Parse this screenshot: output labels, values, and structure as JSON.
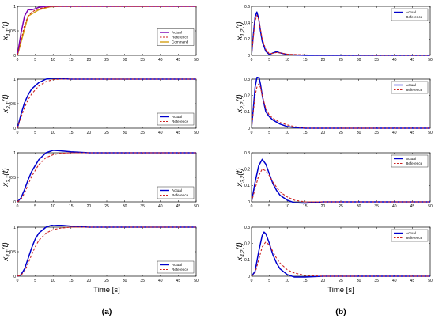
{
  "figure": {
    "panel_labels": [
      "(a)",
      "(b)"
    ],
    "xlabel": "Time [s]"
  },
  "chart_data": [
    {
      "type": "line",
      "panel": "(a)",
      "ylabel": "x_{1,1}(t)",
      "ylabel_main": "x",
      "ylabel_sub": "1,1",
      "ylabel_tail": "(t)",
      "xlabel": "",
      "xlim": [
        0,
        50
      ],
      "ylim": [
        0,
        1
      ],
      "xticks": [
        0,
        5,
        10,
        15,
        20,
        25,
        30,
        35,
        40,
        45,
        50
      ],
      "yticks": [
        0,
        0.5,
        1
      ],
      "legend_position": "right-middle",
      "series": [
        {
          "name": "Command",
          "color": "#d4a017",
          "dash": "solid",
          "x": [
            0,
            3,
            6,
            9,
            12,
            50
          ],
          "y": [
            0,
            0.8,
            0.93,
            0.99,
            1.0,
            1.0
          ]
        },
        {
          "name": "Actual",
          "color": "#7b00b4",
          "dash": "solid",
          "x": [
            0,
            1,
            2,
            3,
            4,
            5,
            6,
            8,
            10,
            50
          ],
          "y": [
            0,
            0.45,
            0.8,
            0.93,
            0.93,
            0.95,
            0.98,
            1.0,
            1.0,
            1.0
          ]
        },
        {
          "name": "Reference",
          "color": "#cc2222",
          "dash": "dashed",
          "x": [
            0,
            1,
            2,
            3,
            4,
            5,
            6,
            8,
            10,
            50
          ],
          "y": [
            0,
            0.3,
            0.62,
            0.8,
            0.88,
            0.92,
            0.95,
            0.98,
            1.0,
            1.0
          ]
        }
      ]
    },
    {
      "type": "line",
      "panel": "(a)",
      "ylabel": "x_{2,1}(t)",
      "ylabel_main": "x",
      "ylabel_sub": "2,1",
      "ylabel_tail": "(t)",
      "xlabel": "",
      "xlim": [
        0,
        50
      ],
      "ylim": [
        0,
        1
      ],
      "xticks": [
        0,
        5,
        10,
        15,
        20,
        25,
        30,
        35,
        40,
        45,
        50
      ],
      "yticks": [
        0,
        0.5,
        1
      ],
      "legend_position": "bottom-right",
      "series": [
        {
          "name": "Actual",
          "color": "#0000cc",
          "dash": "solid",
          "x": [
            0,
            1,
            2,
            3,
            4,
            6,
            8,
            10,
            12,
            15,
            50
          ],
          "y": [
            0,
            0.28,
            0.52,
            0.68,
            0.8,
            0.93,
            1.0,
            1.02,
            1.01,
            1.0,
            1.0
          ]
        },
        {
          "name": "Reference",
          "color": "#cc2222",
          "dash": "dashed",
          "x": [
            0,
            1,
            2,
            3,
            4,
            6,
            8,
            10,
            12,
            15,
            50
          ],
          "y": [
            0,
            0.22,
            0.42,
            0.58,
            0.7,
            0.86,
            0.95,
            0.99,
            1.0,
            1.0,
            1.0
          ]
        }
      ]
    },
    {
      "type": "line",
      "panel": "(a)",
      "ylabel": "x_{3,1}(t)",
      "ylabel_main": "x",
      "ylabel_sub": "3,1",
      "ylabel_tail": "(t)",
      "xlabel": "",
      "xlim": [
        0,
        50
      ],
      "ylim": [
        0,
        1
      ],
      "xticks": [
        0,
        5,
        10,
        15,
        20,
        25,
        30,
        35,
        40,
        45,
        50
      ],
      "yticks": [
        0,
        0.5,
        1
      ],
      "legend_position": "bottom-right",
      "series": [
        {
          "name": "Actual",
          "color": "#0000cc",
          "dash": "solid",
          "x": [
            0,
            1,
            2,
            3,
            4,
            6,
            8,
            10,
            12,
            15,
            20,
            50
          ],
          "y": [
            0,
            0.08,
            0.25,
            0.45,
            0.62,
            0.86,
            1.0,
            1.05,
            1.04,
            1.02,
            1.0,
            1.0
          ]
        },
        {
          "name": "Reference",
          "color": "#cc2222",
          "dash": "dashed",
          "x": [
            0,
            1,
            2,
            3,
            4,
            6,
            8,
            10,
            12,
            15,
            20,
            50
          ],
          "y": [
            0,
            0.05,
            0.18,
            0.35,
            0.52,
            0.76,
            0.9,
            0.96,
            0.99,
            1.0,
            1.0,
            1.0
          ]
        }
      ]
    },
    {
      "type": "line",
      "panel": "(a)",
      "ylabel": "x_{4,1}(t)",
      "ylabel_main": "x",
      "ylabel_sub": "4,1",
      "ylabel_tail": "(t)",
      "xlabel": "Time [s]",
      "xlim": [
        0,
        50
      ],
      "ylim": [
        0,
        1
      ],
      "xticks": [
        0,
        5,
        10,
        15,
        20,
        25,
        30,
        35,
        40,
        45,
        50
      ],
      "yticks": [
        0,
        0.5,
        1
      ],
      "legend_position": "bottom-right",
      "series": [
        {
          "name": "Actual",
          "color": "#0000cc",
          "dash": "solid",
          "x": [
            0,
            1,
            2,
            3,
            4,
            5,
            6,
            8,
            10,
            12,
            15,
            20,
            50
          ],
          "y": [
            0,
            0.03,
            0.15,
            0.36,
            0.58,
            0.76,
            0.88,
            1.0,
            1.05,
            1.04,
            1.02,
            1.0,
            1.0
          ]
        },
        {
          "name": "Reference",
          "color": "#cc2222",
          "dash": "dashed",
          "x": [
            0,
            1,
            2,
            3,
            4,
            5,
            6,
            8,
            10,
            12,
            15,
            20,
            50
          ],
          "y": [
            0,
            0.02,
            0.1,
            0.26,
            0.44,
            0.6,
            0.73,
            0.88,
            0.95,
            0.98,
            1.0,
            1.0,
            1.0
          ]
        }
      ]
    },
    {
      "type": "line",
      "panel": "(b)",
      "ylabel": "x_{1,2}(t)",
      "ylabel_main": "x",
      "ylabel_sub": "1,2",
      "ylabel_tail": "(t)",
      "xlabel": "",
      "xlim": [
        0,
        50
      ],
      "ylim": [
        0,
        0.6
      ],
      "xticks": [
        0,
        5,
        10,
        15,
        20,
        25,
        30,
        35,
        40,
        45,
        50
      ],
      "yticks": [
        0,
        0.2,
        0.4,
        0.6
      ],
      "legend_position": "top-right",
      "series": [
        {
          "name": "Actual",
          "color": "#0000cc",
          "dash": "solid",
          "x": [
            0,
            0.5,
            1,
            1.5,
            2,
            2.5,
            3,
            4,
            5,
            6,
            7,
            8,
            10,
            15,
            50
          ],
          "y": [
            0,
            0.25,
            0.47,
            0.53,
            0.45,
            0.3,
            0.17,
            0.05,
            0.01,
            0.03,
            0.045,
            0.03,
            0.01,
            0,
            0
          ]
        },
        {
          "name": "Reference",
          "color": "#cc2222",
          "dash": "dashed",
          "x": [
            0,
            0.5,
            1,
            1.5,
            2,
            2.5,
            3,
            4,
            5,
            6,
            7,
            8,
            10,
            15,
            50
          ],
          "y": [
            0,
            0.22,
            0.42,
            0.49,
            0.44,
            0.32,
            0.2,
            0.07,
            0.02,
            0.025,
            0.035,
            0.03,
            0.015,
            0.005,
            0
          ]
        }
      ]
    },
    {
      "type": "line",
      "panel": "(b)",
      "ylabel": "x_{2,2}(t)",
      "ylabel_main": "x",
      "ylabel_sub": "2,2",
      "ylabel_tail": "(t)",
      "xlabel": "",
      "xlim": [
        0,
        50
      ],
      "ylim": [
        0,
        0.3
      ],
      "xticks": [
        0,
        5,
        10,
        15,
        20,
        25,
        30,
        35,
        40,
        45,
        50
      ],
      "yticks": [
        0,
        0.1,
        0.2,
        0.3
      ],
      "legend_position": "top-right",
      "series": [
        {
          "name": "Actual",
          "color": "#0000cc",
          "dash": "solid",
          "x": [
            0,
            0.5,
            1,
            1.5,
            2,
            2.5,
            3,
            4,
            5,
            6,
            8,
            10,
            12,
            15,
            50
          ],
          "y": [
            0,
            0.12,
            0.25,
            0.31,
            0.32,
            0.27,
            0.2,
            0.1,
            0.07,
            0.05,
            0.025,
            0.01,
            0.005,
            0,
            0
          ]
        },
        {
          "name": "Reference",
          "color": "#cc2222",
          "dash": "dashed",
          "x": [
            0,
            0.5,
            1,
            1.5,
            2,
            2.5,
            3,
            4,
            5,
            6,
            8,
            10,
            12,
            15,
            50
          ],
          "y": [
            0,
            0.1,
            0.2,
            0.25,
            0.27,
            0.25,
            0.2,
            0.12,
            0.08,
            0.06,
            0.035,
            0.02,
            0.01,
            0,
            0
          ]
        }
      ]
    },
    {
      "type": "line",
      "panel": "(b)",
      "ylabel": "x_{3,2}(t)",
      "ylabel_main": "x",
      "ylabel_sub": "3,2",
      "ylabel_tail": "(t)",
      "xlabel": "",
      "xlim": [
        0,
        50
      ],
      "ylim": [
        0,
        0.3
      ],
      "xticks": [
        0,
        5,
        10,
        15,
        20,
        25,
        30,
        35,
        40,
        45,
        50
      ],
      "yticks": [
        0,
        0.1,
        0.2,
        0.3
      ],
      "legend_position": "top-right",
      "series": [
        {
          "name": "Actual",
          "color": "#0000cc",
          "dash": "solid",
          "x": [
            0,
            1,
            2,
            3,
            4,
            5,
            6,
            7,
            8,
            10,
            12,
            15,
            20,
            50
          ],
          "y": [
            0,
            0.12,
            0.22,
            0.26,
            0.23,
            0.17,
            0.11,
            0.07,
            0.04,
            0.01,
            -0.005,
            -0.008,
            0,
            0
          ]
        },
        {
          "name": "Reference",
          "color": "#cc2222",
          "dash": "dashed",
          "x": [
            0,
            1,
            2,
            3,
            4,
            5,
            6,
            7,
            8,
            10,
            12,
            15,
            20,
            50
          ],
          "y": [
            0,
            0.08,
            0.16,
            0.2,
            0.19,
            0.16,
            0.12,
            0.09,
            0.06,
            0.03,
            0.01,
            0,
            0,
            0
          ]
        }
      ]
    },
    {
      "type": "line",
      "panel": "(b)",
      "ylabel": "x_{4,2}(t)",
      "ylabel_main": "x",
      "ylabel_sub": "4,2",
      "ylabel_tail": "(t)",
      "xlabel": "Time [s]",
      "xlim": [
        0,
        50
      ],
      "ylim": [
        0,
        0.3
      ],
      "xticks": [
        0,
        5,
        10,
        15,
        20,
        25,
        30,
        35,
        40,
        45,
        50
      ],
      "yticks": [
        0,
        0.1,
        0.2,
        0.3
      ],
      "legend_position": "top-right",
      "series": [
        {
          "name": "Actual",
          "color": "#0000cc",
          "dash": "solid",
          "x": [
            0,
            1,
            2,
            3,
            3.5,
            4,
            5,
            6,
            7,
            8,
            10,
            12,
            15,
            20,
            50
          ],
          "y": [
            0,
            0.03,
            0.15,
            0.25,
            0.27,
            0.26,
            0.2,
            0.13,
            0.08,
            0.045,
            0.01,
            -0.005,
            -0.005,
            0,
            0
          ]
        },
        {
          "name": "Reference",
          "color": "#cc2222",
          "dash": "dashed",
          "x": [
            0,
            1,
            2,
            3,
            4,
            5,
            6,
            7,
            8,
            10,
            12,
            15,
            20,
            50
          ],
          "y": [
            0,
            0.02,
            0.1,
            0.18,
            0.21,
            0.19,
            0.15,
            0.11,
            0.08,
            0.04,
            0.02,
            0.005,
            0,
            0
          ]
        }
      ]
    }
  ]
}
